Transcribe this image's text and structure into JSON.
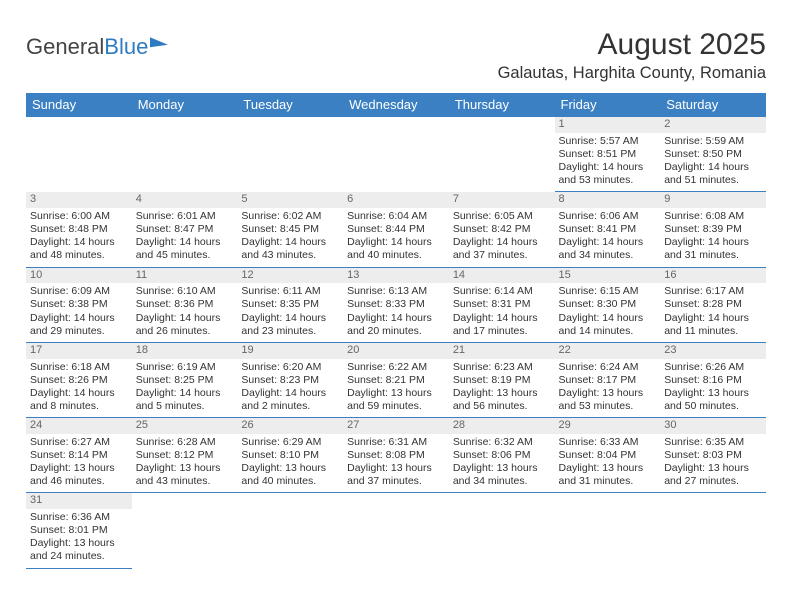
{
  "brand": {
    "part1": "General",
    "part2": "Blue"
  },
  "title": "August 2025",
  "location": "Galautas, Harghita County, Romania",
  "colors": {
    "header_bg": "#3a80c3",
    "header_text": "#ffffff",
    "daybar_bg": "#ededed",
    "border": "#3a80c3",
    "text": "#333333"
  },
  "weekdays": [
    "Sunday",
    "Monday",
    "Tuesday",
    "Wednesday",
    "Thursday",
    "Friday",
    "Saturday"
  ],
  "weeks": [
    [
      null,
      null,
      null,
      null,
      null,
      {
        "n": "1",
        "sr": "Sunrise: 5:57 AM",
        "ss": "Sunset: 8:51 PM",
        "d1": "Daylight: 14 hours",
        "d2": "and 53 minutes."
      },
      {
        "n": "2",
        "sr": "Sunrise: 5:59 AM",
        "ss": "Sunset: 8:50 PM",
        "d1": "Daylight: 14 hours",
        "d2": "and 51 minutes."
      }
    ],
    [
      {
        "n": "3",
        "sr": "Sunrise: 6:00 AM",
        "ss": "Sunset: 8:48 PM",
        "d1": "Daylight: 14 hours",
        "d2": "and 48 minutes."
      },
      {
        "n": "4",
        "sr": "Sunrise: 6:01 AM",
        "ss": "Sunset: 8:47 PM",
        "d1": "Daylight: 14 hours",
        "d2": "and 45 minutes."
      },
      {
        "n": "5",
        "sr": "Sunrise: 6:02 AM",
        "ss": "Sunset: 8:45 PM",
        "d1": "Daylight: 14 hours",
        "d2": "and 43 minutes."
      },
      {
        "n": "6",
        "sr": "Sunrise: 6:04 AM",
        "ss": "Sunset: 8:44 PM",
        "d1": "Daylight: 14 hours",
        "d2": "and 40 minutes."
      },
      {
        "n": "7",
        "sr": "Sunrise: 6:05 AM",
        "ss": "Sunset: 8:42 PM",
        "d1": "Daylight: 14 hours",
        "d2": "and 37 minutes."
      },
      {
        "n": "8",
        "sr": "Sunrise: 6:06 AM",
        "ss": "Sunset: 8:41 PM",
        "d1": "Daylight: 14 hours",
        "d2": "and 34 minutes."
      },
      {
        "n": "9",
        "sr": "Sunrise: 6:08 AM",
        "ss": "Sunset: 8:39 PM",
        "d1": "Daylight: 14 hours",
        "d2": "and 31 minutes."
      }
    ],
    [
      {
        "n": "10",
        "sr": "Sunrise: 6:09 AM",
        "ss": "Sunset: 8:38 PM",
        "d1": "Daylight: 14 hours",
        "d2": "and 29 minutes."
      },
      {
        "n": "11",
        "sr": "Sunrise: 6:10 AM",
        "ss": "Sunset: 8:36 PM",
        "d1": "Daylight: 14 hours",
        "d2": "and 26 minutes."
      },
      {
        "n": "12",
        "sr": "Sunrise: 6:11 AM",
        "ss": "Sunset: 8:35 PM",
        "d1": "Daylight: 14 hours",
        "d2": "and 23 minutes."
      },
      {
        "n": "13",
        "sr": "Sunrise: 6:13 AM",
        "ss": "Sunset: 8:33 PM",
        "d1": "Daylight: 14 hours",
        "d2": "and 20 minutes."
      },
      {
        "n": "14",
        "sr": "Sunrise: 6:14 AM",
        "ss": "Sunset: 8:31 PM",
        "d1": "Daylight: 14 hours",
        "d2": "and 17 minutes."
      },
      {
        "n": "15",
        "sr": "Sunrise: 6:15 AM",
        "ss": "Sunset: 8:30 PM",
        "d1": "Daylight: 14 hours",
        "d2": "and 14 minutes."
      },
      {
        "n": "16",
        "sr": "Sunrise: 6:17 AM",
        "ss": "Sunset: 8:28 PM",
        "d1": "Daylight: 14 hours",
        "d2": "and 11 minutes."
      }
    ],
    [
      {
        "n": "17",
        "sr": "Sunrise: 6:18 AM",
        "ss": "Sunset: 8:26 PM",
        "d1": "Daylight: 14 hours",
        "d2": "and 8 minutes."
      },
      {
        "n": "18",
        "sr": "Sunrise: 6:19 AM",
        "ss": "Sunset: 8:25 PM",
        "d1": "Daylight: 14 hours",
        "d2": "and 5 minutes."
      },
      {
        "n": "19",
        "sr": "Sunrise: 6:20 AM",
        "ss": "Sunset: 8:23 PM",
        "d1": "Daylight: 14 hours",
        "d2": "and 2 minutes."
      },
      {
        "n": "20",
        "sr": "Sunrise: 6:22 AM",
        "ss": "Sunset: 8:21 PM",
        "d1": "Daylight: 13 hours",
        "d2": "and 59 minutes."
      },
      {
        "n": "21",
        "sr": "Sunrise: 6:23 AM",
        "ss": "Sunset: 8:19 PM",
        "d1": "Daylight: 13 hours",
        "d2": "and 56 minutes."
      },
      {
        "n": "22",
        "sr": "Sunrise: 6:24 AM",
        "ss": "Sunset: 8:17 PM",
        "d1": "Daylight: 13 hours",
        "d2": "and 53 minutes."
      },
      {
        "n": "23",
        "sr": "Sunrise: 6:26 AM",
        "ss": "Sunset: 8:16 PM",
        "d1": "Daylight: 13 hours",
        "d2": "and 50 minutes."
      }
    ],
    [
      {
        "n": "24",
        "sr": "Sunrise: 6:27 AM",
        "ss": "Sunset: 8:14 PM",
        "d1": "Daylight: 13 hours",
        "d2": "and 46 minutes."
      },
      {
        "n": "25",
        "sr": "Sunrise: 6:28 AM",
        "ss": "Sunset: 8:12 PM",
        "d1": "Daylight: 13 hours",
        "d2": "and 43 minutes."
      },
      {
        "n": "26",
        "sr": "Sunrise: 6:29 AM",
        "ss": "Sunset: 8:10 PM",
        "d1": "Daylight: 13 hours",
        "d2": "and 40 minutes."
      },
      {
        "n": "27",
        "sr": "Sunrise: 6:31 AM",
        "ss": "Sunset: 8:08 PM",
        "d1": "Daylight: 13 hours",
        "d2": "and 37 minutes."
      },
      {
        "n": "28",
        "sr": "Sunrise: 6:32 AM",
        "ss": "Sunset: 8:06 PM",
        "d1": "Daylight: 13 hours",
        "d2": "and 34 minutes."
      },
      {
        "n": "29",
        "sr": "Sunrise: 6:33 AM",
        "ss": "Sunset: 8:04 PM",
        "d1": "Daylight: 13 hours",
        "d2": "and 31 minutes."
      },
      {
        "n": "30",
        "sr": "Sunrise: 6:35 AM",
        "ss": "Sunset: 8:03 PM",
        "d1": "Daylight: 13 hours",
        "d2": "and 27 minutes."
      }
    ],
    [
      {
        "n": "31",
        "sr": "Sunrise: 6:36 AM",
        "ss": "Sunset: 8:01 PM",
        "d1": "Daylight: 13 hours",
        "d2": "and 24 minutes."
      },
      null,
      null,
      null,
      null,
      null,
      null
    ]
  ]
}
